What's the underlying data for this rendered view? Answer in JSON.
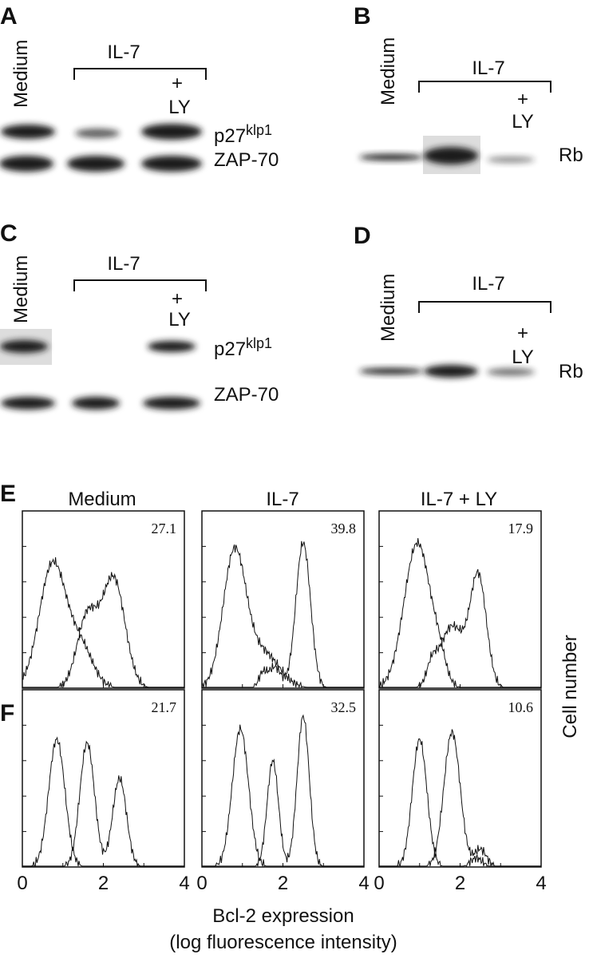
{
  "panels": [
    {
      "label": "A",
      "lane_label": "Medium",
      "treatment": "IL-7",
      "plus": "+",
      "inhibitor": "LY",
      "rows": [
        {
          "name": "p27",
          "sup": "klp1"
        },
        {
          "name": "ZAP-70"
        }
      ]
    },
    {
      "label": "B",
      "lane_label": "Medium",
      "treatment": "IL-7",
      "plus": "+",
      "inhibitor": "LY",
      "rows": [
        {
          "name": "Rb"
        }
      ]
    },
    {
      "label": "C",
      "lane_label": "Medium",
      "treatment": "IL-7",
      "plus": "+",
      "inhibitor": "LY",
      "rows": [
        {
          "name": "p27",
          "sup": "klp1"
        },
        {
          "name": "ZAP-70"
        }
      ]
    },
    {
      "label": "D",
      "lane_label": "Medium",
      "treatment": "IL-7",
      "plus": "+",
      "inhibitor": "LY",
      "rows": [
        {
          "name": "Rb"
        }
      ]
    }
  ],
  "flow": {
    "columns": [
      "Medium",
      "IL-7",
      "IL-7 + LY"
    ],
    "rows": [
      {
        "label": "E",
        "percentages": [
          27.1,
          39.8,
          17.9
        ]
      },
      {
        "label": "F",
        "percentages": [
          21.7,
          32.5,
          10.6
        ]
      }
    ],
    "xticks": [
      0,
      2,
      4
    ],
    "y_label": "Cell number",
    "x_label": "Bcl-2 expression",
    "x_sublabel": "(log fluorescence intensity)"
  }
}
